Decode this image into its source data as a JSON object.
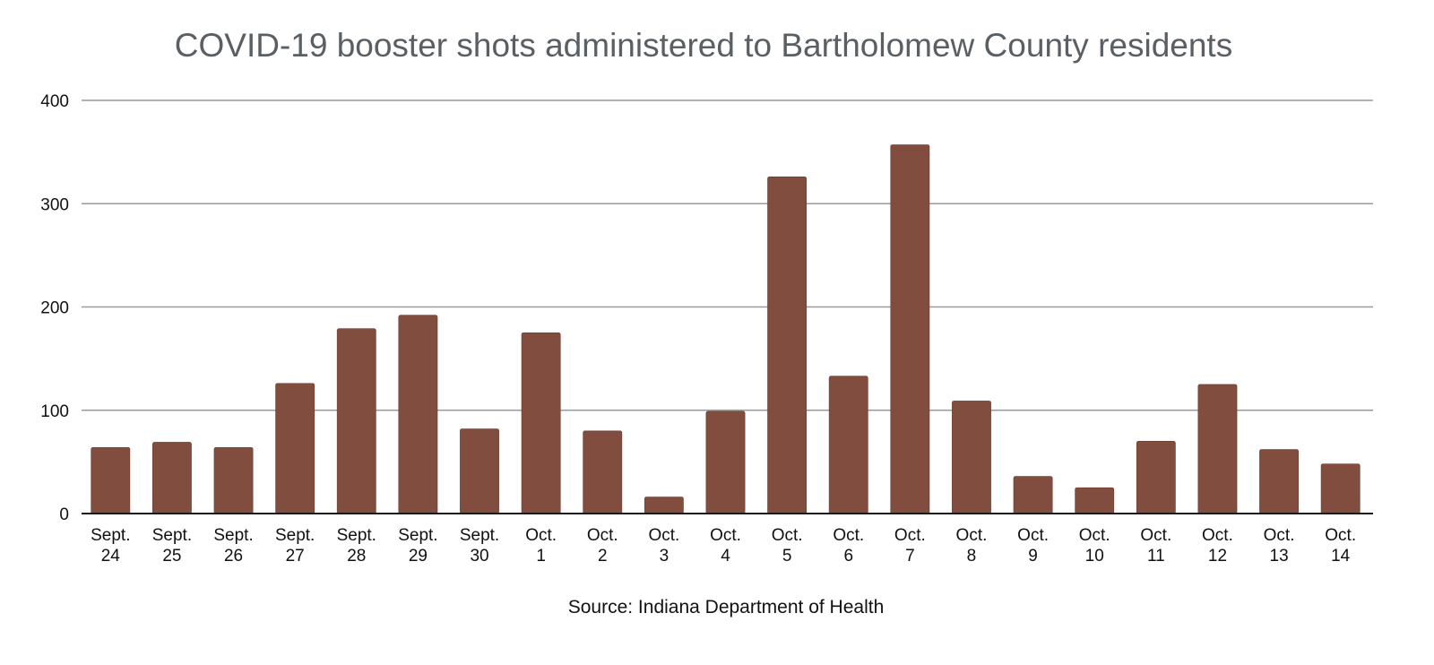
{
  "chart_data": {
    "type": "bar",
    "title": "COVID-19 booster shots administered to Bartholomew County residents",
    "source": "Source: Indiana Department of Health",
    "xlabel": "",
    "ylabel": "",
    "ylim": [
      0,
      400
    ],
    "yticks": [
      0,
      100,
      200,
      300,
      400
    ],
    "grid": true,
    "legend": "none",
    "bar_color": "#814d3f",
    "categories": [
      [
        "Sept.",
        "24"
      ],
      [
        "Sept.",
        "25"
      ],
      [
        "Sept.",
        "26"
      ],
      [
        "Sept.",
        "27"
      ],
      [
        "Sept.",
        "28"
      ],
      [
        "Sept.",
        "29"
      ],
      [
        "Sept.",
        "30"
      ],
      [
        "Oct.",
        "1"
      ],
      [
        "Oct.",
        "2"
      ],
      [
        "Oct.",
        "3"
      ],
      [
        "Oct.",
        "4"
      ],
      [
        "Oct.",
        "5"
      ],
      [
        "Oct.",
        "6"
      ],
      [
        "Oct.",
        "7"
      ],
      [
        "Oct.",
        "8"
      ],
      [
        "Oct.",
        "9"
      ],
      [
        "Oct.",
        "10"
      ],
      [
        "Oct.",
        "11"
      ],
      [
        "Oct.",
        "12"
      ],
      [
        "Oct.",
        "13"
      ],
      [
        "Oct.",
        "14"
      ]
    ],
    "values": [
      64,
      69,
      64,
      126,
      179,
      192,
      82,
      175,
      80,
      16,
      99,
      326,
      133,
      357,
      109,
      36,
      25,
      70,
      125,
      62,
      48
    ]
  }
}
